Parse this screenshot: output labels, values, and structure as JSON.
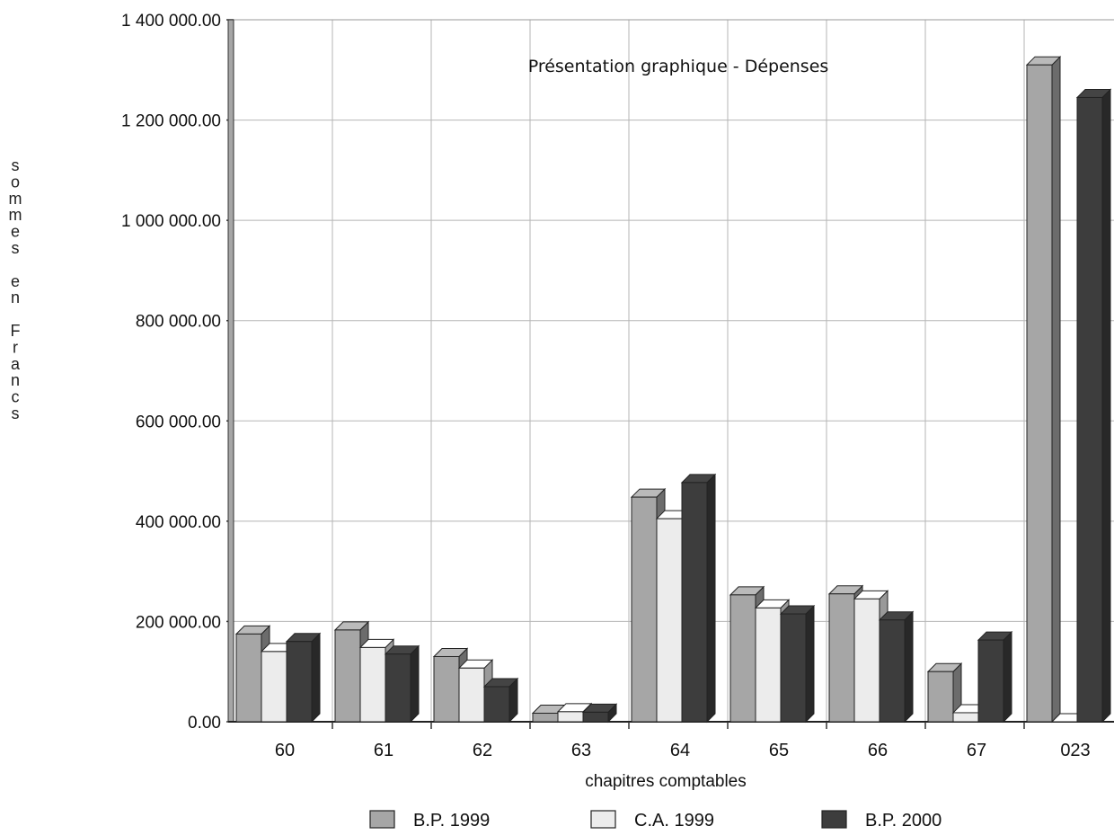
{
  "chart_data": {
    "type": "bar",
    "title": "Présentation graphique - Dépenses",
    "xlabel": "chapitres comptables",
    "ylabel": "sommes en Francs",
    "categories": [
      "60",
      "61",
      "62",
      "63",
      "64",
      "65",
      "66",
      "67",
      "023"
    ],
    "series": [
      {
        "name": "B.P. 1999",
        "color": "#a6a6a6",
        "values": [
          175000,
          183000,
          130000,
          17000,
          448000,
          253000,
          255000,
          100000,
          1310000
        ]
      },
      {
        "name": "C.A. 1999",
        "color": "#ececec",
        "values": [
          140000,
          148000,
          107000,
          20000,
          405000,
          227000,
          245000,
          18000,
          0
        ]
      },
      {
        "name": "B.P. 2000",
        "color": "#3d3d3d",
        "values": [
          160000,
          135000,
          70000,
          19000,
          477000,
          215000,
          203000,
          163000,
          1245000
        ]
      }
    ],
    "ylim": [
      0,
      1400000
    ],
    "yticks": [
      "0.00",
      "200 000.00",
      "400 000.00",
      "600 000.00",
      "800 000.00",
      "1 000 000.00",
      "1 200 000.00",
      "1 400 000.00"
    ],
    "grid": true,
    "legend_position": "bottom"
  }
}
